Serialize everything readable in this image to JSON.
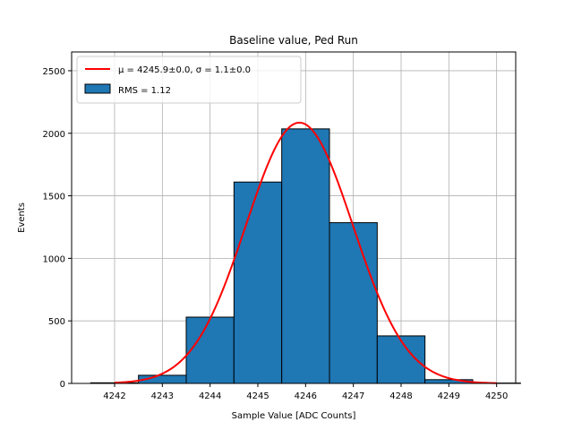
{
  "chart_data": {
    "type": "bar",
    "title": "Baseline value, Ped Run",
    "xlabel": "Sample Value [ADC Counts]",
    "ylabel": "Events",
    "xlim": [
      4241.1,
      4250.4
    ],
    "ylim": [
      0,
      2650
    ],
    "x_ticks": [
      4242,
      4243,
      4244,
      4245,
      4246,
      4247,
      4248,
      4249,
      4250
    ],
    "y_ticks": [
      0,
      500,
      1000,
      1500,
      2000,
      2500
    ],
    "grid": true,
    "legend_position": "top-left",
    "histogram": {
      "name": "RMS = 1.12",
      "color": "#1f77b4",
      "edge_color": "#000000",
      "bin_edges": [
        4241.5,
        4242.5,
        4243.5,
        4244.5,
        4245.5,
        4246.5,
        4247.5,
        4248.5,
        4249.5,
        4250.5
      ],
      "counts": [
        5,
        65,
        530,
        1610,
        2035,
        1285,
        380,
        30,
        3
      ]
    },
    "fit": {
      "name": "μ = 4245.9±0.0, σ = 1.1±0.0",
      "color": "#ff0000",
      "mu": 4245.87,
      "sigma": 1.12,
      "amplitude": 2085,
      "x_range": [
        4242,
        4250
      ]
    }
  }
}
